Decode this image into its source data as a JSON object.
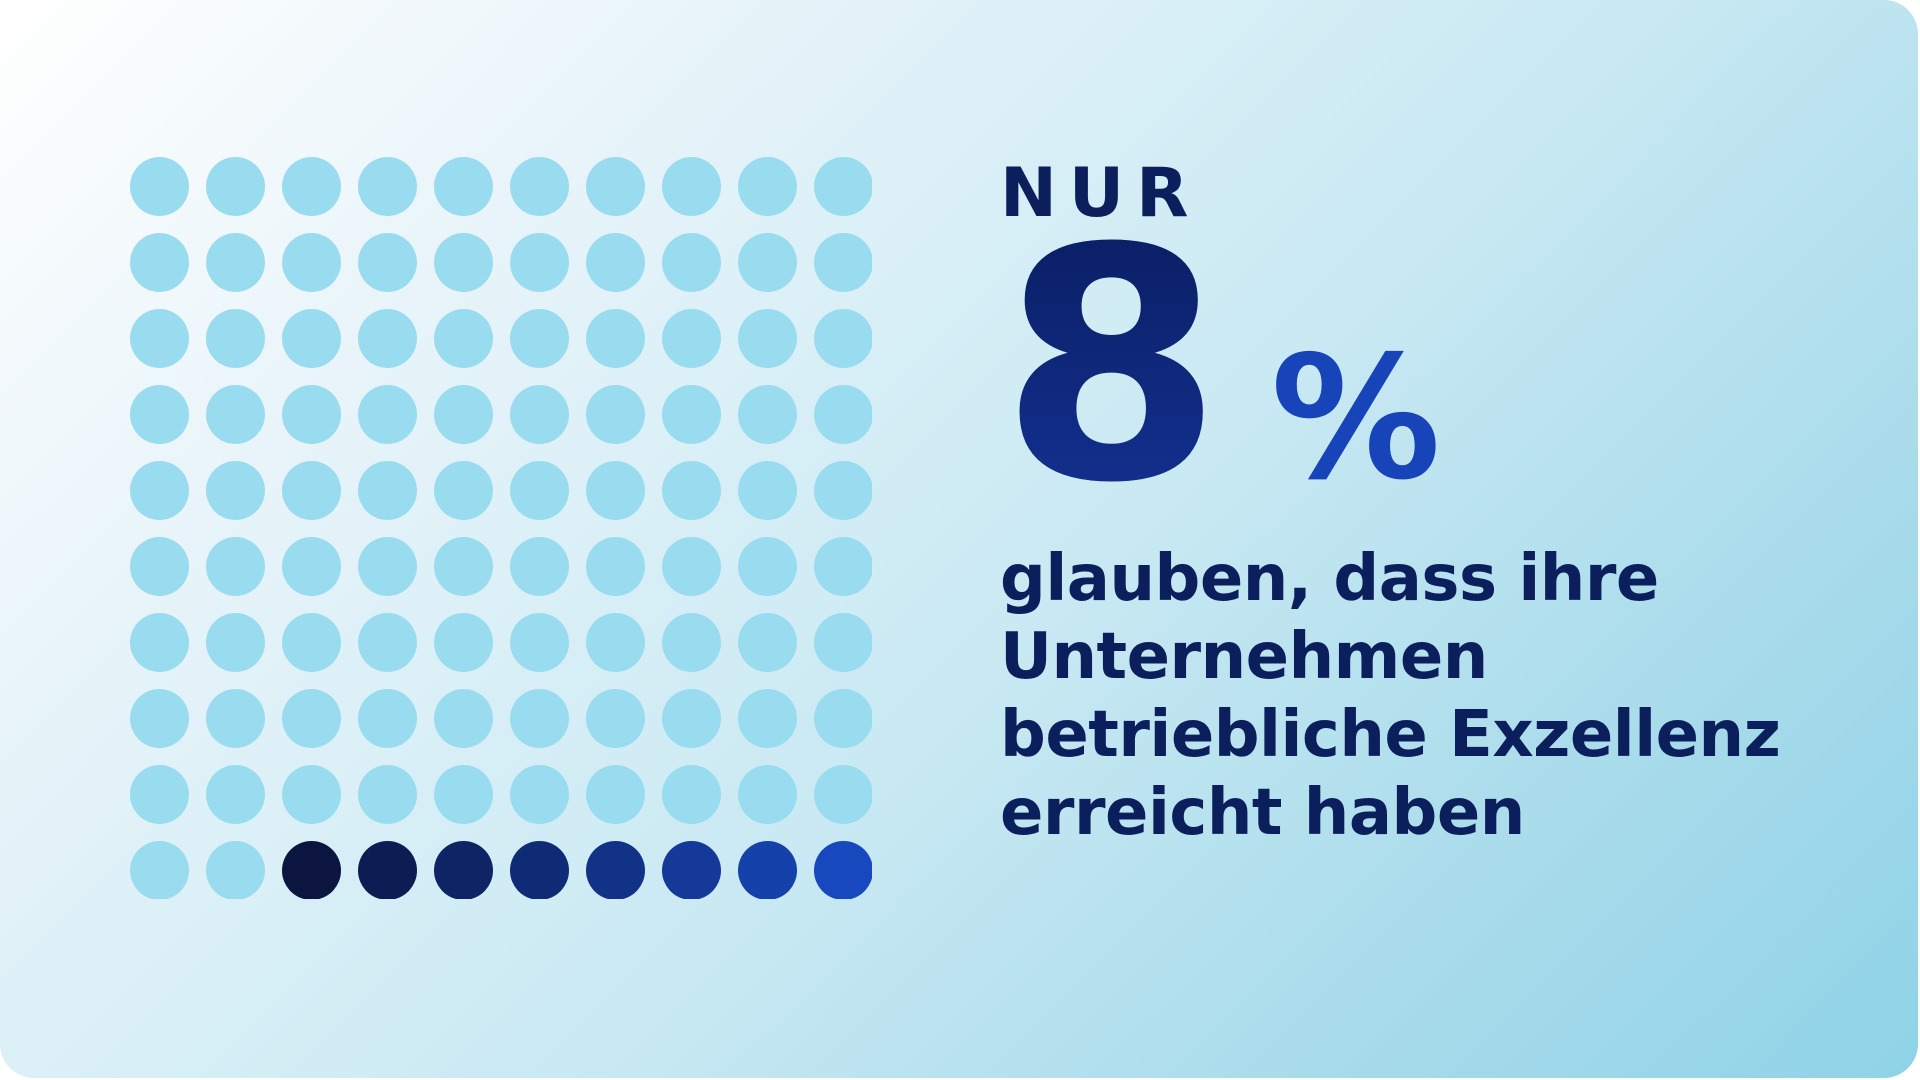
{
  "kicker": "NUR",
  "stat": {
    "value": "8",
    "unit": "%"
  },
  "description_lines": [
    "glauben, dass ihre",
    "Unternehmen",
    "betriebliche Exzellenz",
    "erreicht haben"
  ],
  "colors": {
    "dot_inactive": "#9adcef",
    "dot_active_start": "#0b1540",
    "dot_active_end": "#1748bd",
    "text_primary": "#0b1f5c",
    "percent_accent": "#1744b8"
  },
  "chart_data": {
    "type": "waffle",
    "rows": 10,
    "columns": 10,
    "total": 100,
    "highlighted": 8,
    "highlight_fill_order": "bottom-right"
  }
}
